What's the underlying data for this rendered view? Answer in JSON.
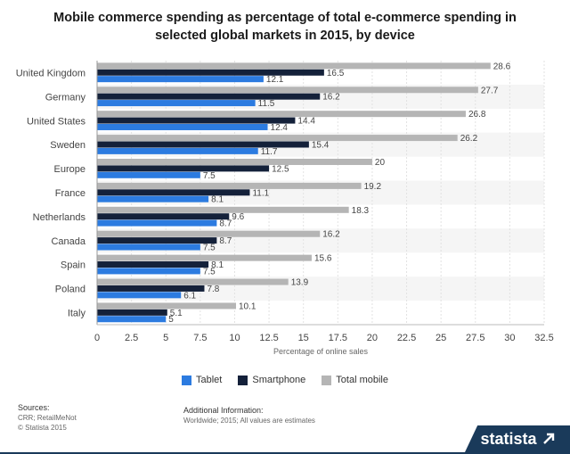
{
  "chart_data": {
    "type": "bar",
    "orientation": "horizontal",
    "title": "Mobile commerce spending as percentage of total e-commerce spending in selected global markets in 2015, by device",
    "title_lines": [
      "Mobile commerce spending as percentage of total e-commerce spending in",
      "selected global markets in 2015, by device"
    ],
    "xlabel": "Percentage of online sales",
    "ylabel": "",
    "xlim": [
      0,
      32.5
    ],
    "x_ticks": [
      "0",
      "2.5",
      "5",
      "7.5",
      "10",
      "12.5",
      "15",
      "17.5",
      "20",
      "22.5",
      "25",
      "27.5",
      "30",
      "32.5"
    ],
    "categories": [
      "United Kingdom",
      "Germany",
      "United States",
      "Sweden",
      "Europe",
      "France",
      "Netherlands",
      "Canada",
      "Spain",
      "Poland",
      "Italy"
    ],
    "series": [
      {
        "name": "Total mobile",
        "color": "#b5b5b5",
        "values": [
          28.6,
          27.7,
          26.8,
          26.2,
          20,
          19.2,
          18.3,
          16.2,
          15.6,
          13.9,
          10.1
        ]
      },
      {
        "name": "Smartphone",
        "color": "#14213a",
        "values": [
          16.5,
          16.2,
          14.4,
          15.4,
          12.5,
          11.1,
          9.6,
          8.7,
          8.1,
          7.8,
          5.1
        ]
      },
      {
        "name": "Tablet",
        "color": "#2c7be0",
        "values": [
          12.1,
          11.5,
          12.4,
          11.7,
          7.5,
          8.1,
          8.7,
          7.5,
          7.5,
          6.1,
          5
        ]
      }
    ],
    "legend": [
      {
        "name": "Tablet",
        "color": "#2c7be0"
      },
      {
        "name": "Smartphone",
        "color": "#14213a"
      },
      {
        "name": "Total mobile",
        "color": "#b5b5b5"
      }
    ],
    "grid": true,
    "legend_position": "bottom"
  },
  "footer": {
    "sources_title": "Sources:",
    "sources": [
      "CRR; RetailMeNot",
      "© Statista 2015"
    ],
    "info_title": "Additional Information:",
    "info_text": "Worldwide; 2015; All values are estimates",
    "brand": "statista"
  }
}
